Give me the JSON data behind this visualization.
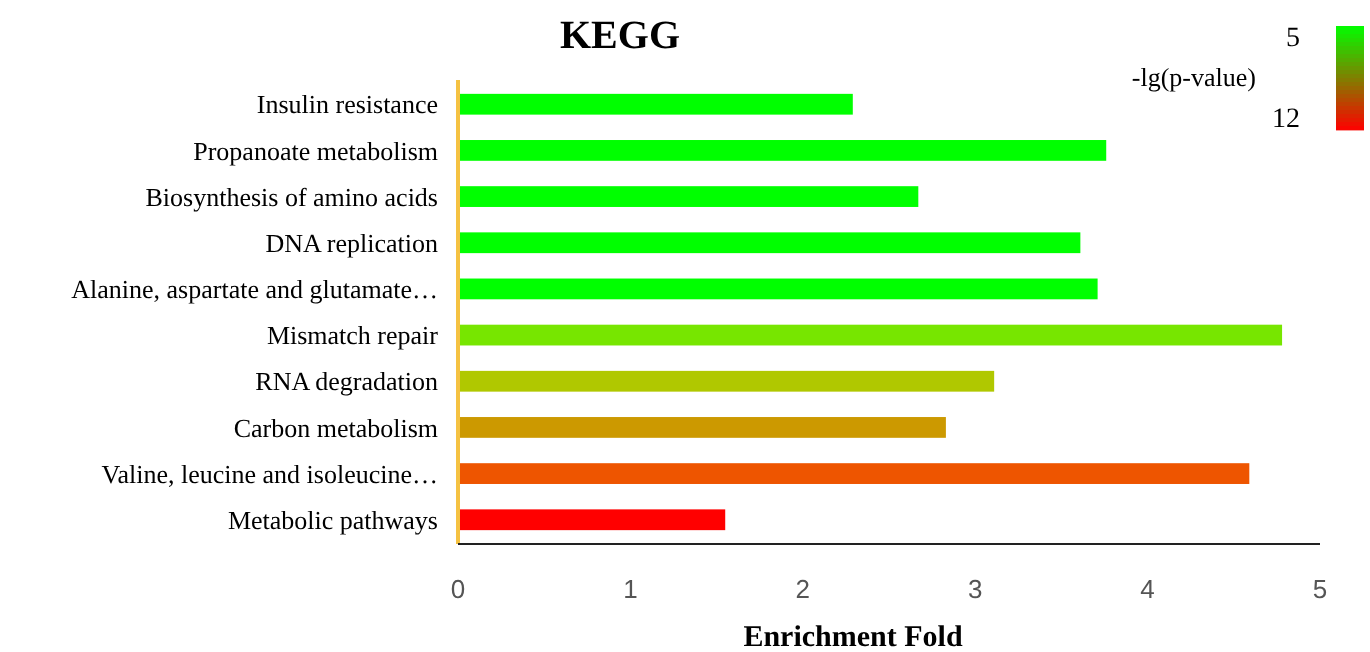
{
  "chart_data": {
    "type": "bar",
    "orientation": "horizontal",
    "title": "KEGG",
    "xlabel": "Enrichment Fold",
    "clabel": "-lg(p-value)",
    "annotations": [
      "5",
      "12"
    ],
    "categories": [
      "Insulin resistance",
      "Propanoate metabolism",
      "Biosynthesis of amino acids",
      "DNA replication",
      "Alanine, aspartate and glutamate…",
      "Mismatch repair",
      "RNA degradation",
      "Carbon metabolism",
      "Valine, leucine and isoleucine…",
      "Metabolic pathways"
    ],
    "values": [
      2.29,
      3.76,
      2.67,
      3.61,
      3.71,
      4.78,
      3.11,
      2.83,
      4.59,
      1.55
    ],
    "colors": [
      "#00ff00",
      "#00ff00",
      "#00ff00",
      "#00ff00",
      "#00ff00",
      "#77e600",
      "#b0c800",
      "#cc9900",
      "#ee5500",
      "#ff0000"
    ],
    "xlim": [
      0,
      5
    ],
    "xticks": [
      0,
      1,
      2,
      3,
      4,
      5
    ],
    "grid": false
  }
}
